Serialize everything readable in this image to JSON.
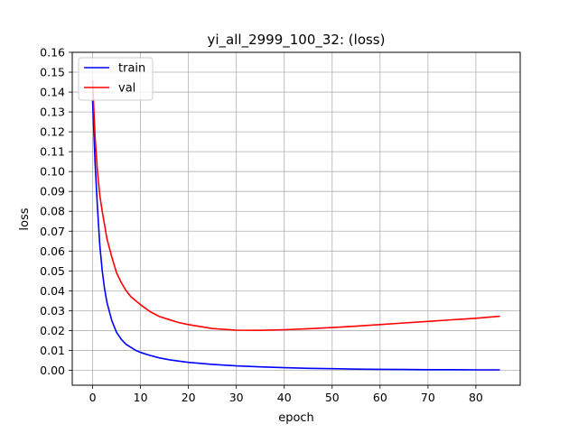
{
  "chart_data": {
    "type": "line",
    "title": "yi_all_2999_100_32: (loss)",
    "xlabel": "epoch",
    "ylabel": "loss",
    "xlim": [
      -4.25,
      89.25
    ],
    "ylim": [
      -0.0075,
      0.16
    ],
    "xticks": [
      0,
      10,
      20,
      30,
      40,
      50,
      60,
      70,
      80
    ],
    "yticks": [
      0.0,
      0.01,
      0.02,
      0.03,
      0.04,
      0.05,
      0.06,
      0.07,
      0.08,
      0.09,
      0.1,
      0.11,
      0.12,
      0.13,
      0.14,
      0.15,
      0.16
    ],
    "grid": true,
    "legend_position": "top-left",
    "series": [
      {
        "name": "train",
        "color": "#0000ff",
        "x": [
          0,
          0.5,
          1,
          1.5,
          2,
          2.5,
          3,
          4,
          5,
          6,
          7,
          8,
          9,
          10,
          12,
          14,
          16,
          18,
          20,
          25,
          30,
          35,
          40,
          45,
          50,
          55,
          60,
          65,
          70,
          75,
          80,
          85
        ],
        "y": [
          0.136,
          0.105,
          0.082,
          0.063,
          0.05,
          0.041,
          0.034,
          0.025,
          0.019,
          0.0155,
          0.013,
          0.0115,
          0.01,
          0.009,
          0.0075,
          0.0062,
          0.0053,
          0.0046,
          0.004,
          0.003,
          0.0022,
          0.0017,
          0.0013,
          0.001,
          0.0008,
          0.0006,
          0.0005,
          0.0004,
          0.0003,
          0.0003,
          0.0002,
          0.0002
        ]
      },
      {
        "name": "val",
        "color": "#ff0000",
        "x": [
          0,
          0.5,
          1,
          1.5,
          2,
          3,
          4,
          5,
          6,
          7,
          8,
          9,
          10,
          12,
          14,
          16,
          18,
          20,
          25,
          30,
          35,
          40,
          45,
          50,
          55,
          60,
          65,
          70,
          75,
          80,
          85
        ],
        "y": [
          0.146,
          0.118,
          0.1,
          0.088,
          0.08,
          0.066,
          0.057,
          0.049,
          0.044,
          0.04,
          0.037,
          0.035,
          0.033,
          0.0295,
          0.027,
          0.0255,
          0.024,
          0.023,
          0.021,
          0.0202,
          0.0201,
          0.0204,
          0.0209,
          0.0215,
          0.0222,
          0.023,
          0.0238,
          0.0246,
          0.0254,
          0.0262,
          0.0272
        ]
      }
    ]
  }
}
